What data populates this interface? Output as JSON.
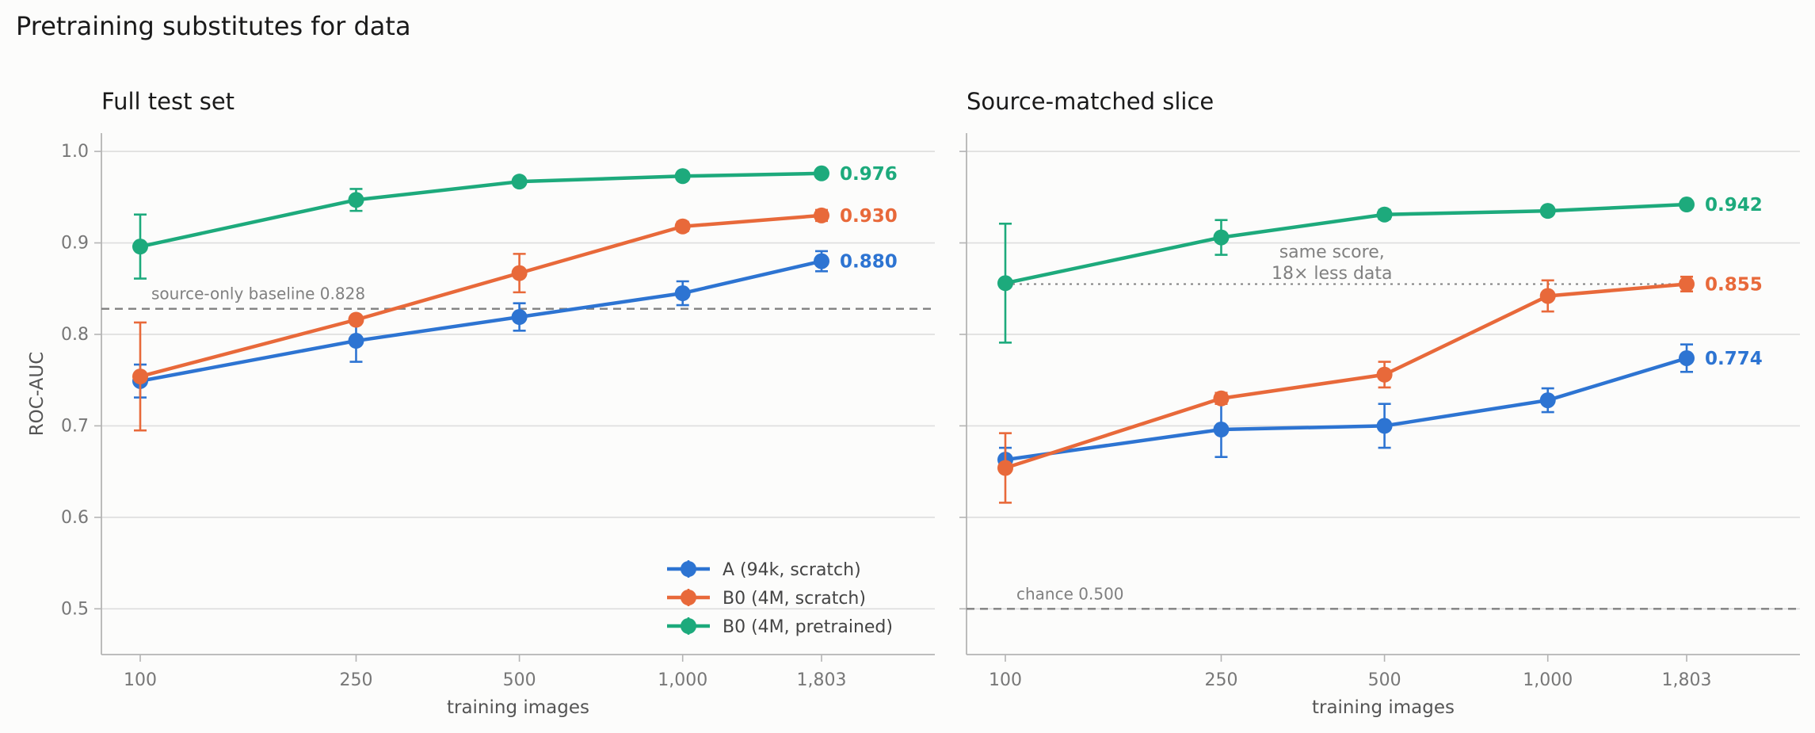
{
  "title": "Pretraining substitutes for data",
  "colors": {
    "A": "#2d74d2",
    "B0s": "#e8693a",
    "B0p": "#1daa7c",
    "grid": "#dddddd",
    "ref": "#808080",
    "axis": "#b4b4b4"
  },
  "chart_data": [
    {
      "type": "line",
      "title": "Full test set",
      "xlabel": "training images",
      "ylabel": "ROC-AUC",
      "x": [
        100,
        250,
        500,
        1000,
        1803
      ],
      "xtick_labels": [
        "100",
        "250",
        "500",
        "1,000",
        "1,803"
      ],
      "x_scale": "log",
      "ylim": [
        0.45,
        1.02
      ],
      "yticks": [
        0.5,
        0.6,
        0.7,
        0.8,
        0.9,
        1.0
      ],
      "ytick_labels": [
        "0.5",
        "0.6",
        "0.7",
        "0.8",
        "0.9",
        "1.0"
      ],
      "grid": "horizontal",
      "legend": "lower-right",
      "series": [
        {
          "name": "A (94k, scratch)",
          "color": "#2d74d2",
          "values": [
            0.749,
            0.793,
            0.819,
            0.845,
            0.88
          ],
          "err": [
            0.018,
            0.023,
            0.015,
            0.013,
            0.011
          ],
          "end_label": "0.880"
        },
        {
          "name": "B0 (4M, scratch)",
          "color": "#e8693a",
          "values": [
            0.754,
            0.816,
            0.867,
            0.918,
            0.93
          ],
          "err": [
            0.059,
            0.004,
            0.021,
            0.005,
            0.006
          ],
          "end_label": "0.930"
        },
        {
          "name": "B0 (4M, pretrained)",
          "color": "#1daa7c",
          "values": [
            0.896,
            0.947,
            0.967,
            0.973,
            0.976
          ],
          "err": [
            0.035,
            0.012,
            0.003,
            0.003,
            0.002
          ],
          "end_label": "0.976"
        }
      ],
      "reference_line": {
        "y": 0.828,
        "label": "source-only baseline  0.828"
      }
    },
    {
      "type": "line",
      "title": "Source-matched slice",
      "xlabel": "training images",
      "ylabel": "",
      "x": [
        100,
        250,
        500,
        1000,
        1803
      ],
      "xtick_labels": [
        "100",
        "250",
        "500",
        "1,000",
        "1,803"
      ],
      "x_scale": "log",
      "ylim": [
        0.45,
        1.02
      ],
      "yticks": [
        0.5,
        0.6,
        0.7,
        0.8,
        0.9,
        1.0
      ],
      "ytick_labels": [],
      "grid": "horizontal",
      "series": [
        {
          "name": "A (94k, scratch)",
          "color": "#2d74d2",
          "values": [
            0.663,
            0.696,
            0.7,
            0.728,
            0.774
          ],
          "err": [
            0.013,
            0.03,
            0.024,
            0.013,
            0.015
          ],
          "end_label": "0.774"
        },
        {
          "name": "B0 (4M, scratch)",
          "color": "#e8693a",
          "values": [
            0.654,
            0.73,
            0.756,
            0.842,
            0.855
          ],
          "err": [
            0.038,
            0.006,
            0.014,
            0.017,
            0.008
          ],
          "end_label": "0.855"
        },
        {
          "name": "B0 (4M, pretrained)",
          "color": "#1daa7c",
          "values": [
            0.856,
            0.906,
            0.931,
            0.935,
            0.942
          ],
          "err": [
            0.065,
            0.019,
            0.005,
            0.003,
            0.003
          ],
          "end_label": "0.942"
        }
      ],
      "reference_line": {
        "y": 0.5,
        "label": "chance  0.500"
      },
      "match_line": {
        "y": 0.855,
        "x_from": 100,
        "x_to": 1803
      },
      "annotation": {
        "lines": [
          "same score,",
          "18× less data"
        ],
        "x": 400,
        "y": 0.877
      }
    }
  ]
}
